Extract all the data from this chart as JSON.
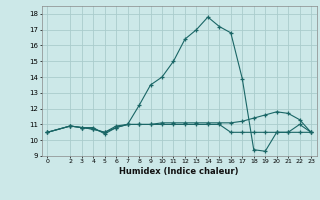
{
  "xlabel": "Humidex (Indice chaleur)",
  "ylabel": "",
  "bg_color": "#cce8e8",
  "grid_color": "#aacccc",
  "line_color": "#1a6666",
  "xlim": [
    -0.5,
    23.5
  ],
  "ylim": [
    9,
    18.5
  ],
  "yticks": [
    9,
    10,
    11,
    12,
    13,
    14,
    15,
    16,
    17,
    18
  ],
  "xticks": [
    0,
    2,
    3,
    4,
    5,
    6,
    7,
    8,
    9,
    10,
    11,
    12,
    13,
    14,
    15,
    16,
    17,
    18,
    19,
    20,
    21,
    22,
    23
  ],
  "series": [
    {
      "x": [
        0,
        2,
        3,
        4,
        5,
        6,
        7,
        8,
        9,
        10,
        11,
        12,
        13,
        14,
        15,
        16,
        17,
        18,
        19,
        20,
        21,
        22,
        23
      ],
      "y": [
        10.5,
        10.9,
        10.8,
        10.8,
        10.4,
        10.8,
        11.0,
        12.2,
        13.5,
        14.0,
        15.0,
        16.4,
        17.0,
        17.8,
        17.2,
        16.8,
        13.9,
        9.4,
        9.3,
        10.5,
        10.5,
        11.0,
        10.5
      ]
    },
    {
      "x": [
        0,
        2,
        3,
        4,
        5,
        6,
        7,
        8,
        9,
        10,
        11,
        12,
        13,
        14,
        15,
        16,
        17,
        18,
        19,
        20,
        21,
        22,
        23
      ],
      "y": [
        10.5,
        10.9,
        10.8,
        10.7,
        10.5,
        10.9,
        11.0,
        11.0,
        11.0,
        11.1,
        11.1,
        11.1,
        11.1,
        11.1,
        11.1,
        11.1,
        11.2,
        11.4,
        11.6,
        11.8,
        11.7,
        11.3,
        10.5
      ]
    },
    {
      "x": [
        0,
        2,
        3,
        4,
        5,
        6,
        7,
        8,
        9,
        10,
        11,
        12,
        13,
        14,
        15,
        16,
        17,
        18,
        19,
        20,
        21,
        22,
        23
      ],
      "y": [
        10.5,
        10.9,
        10.8,
        10.7,
        10.5,
        10.8,
        11.0,
        11.0,
        11.0,
        11.0,
        11.0,
        11.0,
        11.0,
        11.0,
        11.0,
        10.5,
        10.5,
        10.5,
        10.5,
        10.5,
        10.5,
        10.5,
        10.5
      ]
    }
  ]
}
